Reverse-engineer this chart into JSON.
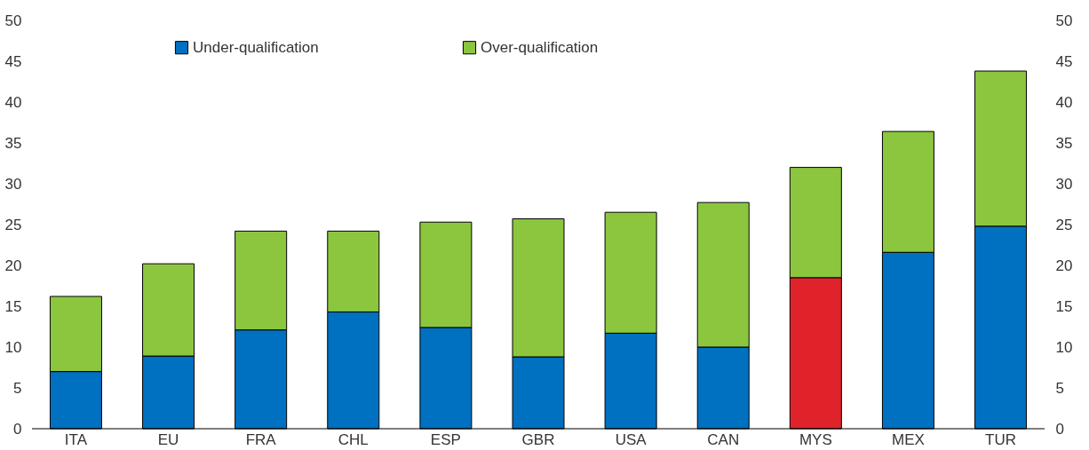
{
  "chart_data": {
    "type": "bar",
    "stacked": true,
    "categories": [
      "ITA",
      "EU",
      "FRA",
      "CHL",
      "ESP",
      "GBR",
      "USA",
      "CAN",
      "MYS",
      "MEX",
      "TUR"
    ],
    "series": [
      {
        "name": "Under-qualification",
        "color": "#0070c0",
        "colors": [
          "#0070c0",
          "#0070c0",
          "#0070c0",
          "#0070c0",
          "#0070c0",
          "#0070c0",
          "#0070c0",
          "#0070c0",
          "#e0232b",
          "#0070c0",
          "#0070c0"
        ],
        "values": [
          7.0,
          8.9,
          12.1,
          14.3,
          12.4,
          8.8,
          11.7,
          10.0,
          18.5,
          21.6,
          24.8
        ]
      },
      {
        "name": "Over-qualification",
        "color": "#8cc63f",
        "values": [
          9.2,
          11.3,
          12.1,
          9.9,
          12.9,
          16.9,
          14.8,
          17.7,
          13.5,
          14.8,
          19.0
        ]
      }
    ],
    "ylim": [
      0,
      50
    ],
    "yticks": [
      0,
      5,
      10,
      15,
      20,
      25,
      30,
      35,
      40,
      45,
      50
    ],
    "y2lim": [
      0,
      50
    ],
    "y2ticks": [
      0,
      5,
      10,
      15,
      20,
      25,
      30,
      35,
      40,
      45,
      50
    ],
    "legend": "top",
    "grid": false
  }
}
